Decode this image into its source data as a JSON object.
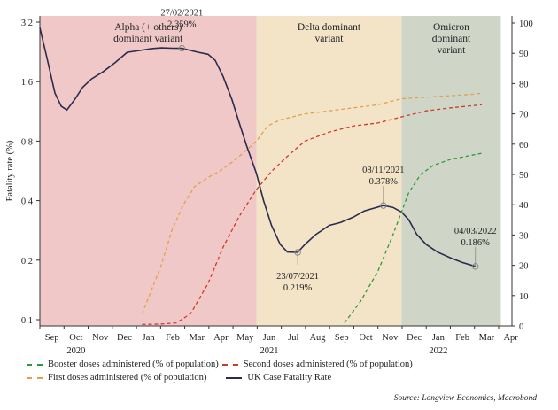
{
  "chart_data": {
    "type": "line",
    "ylabel_left": "Fatality rate (%)",
    "left_axis": {
      "scale": "log2",
      "ticks": [
        "0.1",
        "0.2",
        "0.4",
        "0.8",
        "1.6",
        "3.2"
      ],
      "ylim": [
        0.1,
        3.2
      ]
    },
    "right_axis": {
      "ticks": [
        "0",
        "10",
        "20",
        "30",
        "40",
        "50",
        "60",
        "70",
        "80",
        "90",
        "100"
      ],
      "ylim": [
        0,
        100
      ]
    },
    "x_ticks": [
      "Sep",
      "Oct",
      "Nov",
      "Dec",
      "Jan",
      "Feb",
      "Mar",
      "Apr",
      "May",
      "Jun",
      "Jul",
      "Aug",
      "Sep",
      "Oct",
      "Nov",
      "Dec",
      "Jan",
      "Feb",
      "Mar",
      "Apr"
    ],
    "year_labels": [
      "2020",
      "2021",
      "2022"
    ],
    "regions": [
      {
        "label": [
          "Alpha (+ others)",
          "dominant variant"
        ],
        "from": "2020-09-01",
        "to": "2021-06-01",
        "color": "#f0c8c8"
      },
      {
        "label": [
          "Delta dominant",
          "variant"
        ],
        "from": "2021-06-01",
        "to": "2021-12-01",
        "color": "#f3e4c8"
      },
      {
        "label": [
          "Omicron",
          "dominant",
          "variant"
        ],
        "from": "2021-12-01",
        "to": "2022-04-05",
        "color": "#cfd6c8"
      }
    ],
    "series": [
      {
        "name": "UK Case Fatality Rate",
        "axis": "left",
        "style": "solid",
        "color": "#2b2b4d",
        "points": [
          [
            "2020-09-01",
            3.0
          ],
          [
            "2020-09-10",
            2.1
          ],
          [
            "2020-09-20",
            1.4
          ],
          [
            "2020-09-28",
            1.2
          ],
          [
            "2020-10-05",
            1.15
          ],
          [
            "2020-10-15",
            1.3
          ],
          [
            "2020-10-25",
            1.5
          ],
          [
            "2020-11-05",
            1.65
          ],
          [
            "2020-11-20",
            1.8
          ],
          [
            "2020-12-05",
            2.0
          ],
          [
            "2020-12-20",
            2.25
          ],
          [
            "2021-01-05",
            2.3
          ],
          [
            "2021-01-20",
            2.35
          ],
          [
            "2021-02-01",
            2.37
          ],
          [
            "2021-02-15",
            2.36
          ],
          [
            "2021-02-27",
            2.359
          ],
          [
            "2021-03-10",
            2.3
          ],
          [
            "2021-03-20",
            2.25
          ],
          [
            "2021-04-01",
            2.2
          ],
          [
            "2021-04-10",
            2.05
          ],
          [
            "2021-04-20",
            1.7
          ],
          [
            "2021-05-01",
            1.3
          ],
          [
            "2021-05-10",
            1.0
          ],
          [
            "2021-05-20",
            0.75
          ],
          [
            "2021-06-01",
            0.55
          ],
          [
            "2021-06-10",
            0.4
          ],
          [
            "2021-06-20",
            0.3
          ],
          [
            "2021-07-01",
            0.24
          ],
          [
            "2021-07-10",
            0.22
          ],
          [
            "2021-07-23",
            0.219
          ],
          [
            "2021-08-01",
            0.24
          ],
          [
            "2021-08-15",
            0.27
          ],
          [
            "2021-09-01",
            0.3
          ],
          [
            "2021-09-15",
            0.31
          ],
          [
            "2021-10-01",
            0.33
          ],
          [
            "2021-10-15",
            0.355
          ],
          [
            "2021-11-08",
            0.378
          ],
          [
            "2021-11-20",
            0.37
          ],
          [
            "2021-12-01",
            0.35
          ],
          [
            "2021-12-10",
            0.32
          ],
          [
            "2021-12-20",
            0.27
          ],
          [
            "2022-01-01",
            0.24
          ],
          [
            "2022-01-15",
            0.22
          ],
          [
            "2022-02-01",
            0.205
          ],
          [
            "2022-02-15",
            0.195
          ],
          [
            "2022-03-04",
            0.186
          ]
        ]
      },
      {
        "name": "First doses administered (% of population)",
        "axis": "right",
        "style": "dashed",
        "color": "#e0a050",
        "points": [
          [
            "2021-01-08",
            4
          ],
          [
            "2021-01-20",
            12
          ],
          [
            "2021-02-01",
            20
          ],
          [
            "2021-02-15",
            32
          ],
          [
            "2021-03-01",
            40
          ],
          [
            "2021-03-15",
            46
          ],
          [
            "2021-04-01",
            49
          ],
          [
            "2021-04-15",
            51
          ],
          [
            "2021-05-01",
            54
          ],
          [
            "2021-05-15",
            57
          ],
          [
            "2021-06-01",
            61
          ],
          [
            "2021-06-15",
            66
          ],
          [
            "2021-07-01",
            68
          ],
          [
            "2021-08-01",
            70
          ],
          [
            "2021-09-01",
            71
          ],
          [
            "2021-10-01",
            72
          ],
          [
            "2021-11-01",
            73
          ],
          [
            "2021-12-01",
            75
          ],
          [
            "2022-01-01",
            75.5
          ],
          [
            "2022-02-01",
            76
          ],
          [
            "2022-03-01",
            76.5
          ],
          [
            "2022-03-12",
            76.8
          ]
        ]
      },
      {
        "name": "Second doses administered (% of population)",
        "axis": "right",
        "style": "dashed",
        "color": "#d03a2a",
        "points": [
          [
            "2021-01-08",
            0.5
          ],
          [
            "2021-02-01",
            0.6
          ],
          [
            "2021-02-20",
            1
          ],
          [
            "2021-03-10",
            4
          ],
          [
            "2021-04-01",
            14
          ],
          [
            "2021-04-20",
            26
          ],
          [
            "2021-05-10",
            36
          ],
          [
            "2021-06-01",
            45
          ],
          [
            "2021-06-20",
            51
          ],
          [
            "2021-07-10",
            56
          ],
          [
            "2021-08-01",
            61
          ],
          [
            "2021-09-01",
            64
          ],
          [
            "2021-10-01",
            66
          ],
          [
            "2021-11-01",
            67
          ],
          [
            "2021-12-01",
            69
          ],
          [
            "2022-01-01",
            71
          ],
          [
            "2022-02-01",
            72
          ],
          [
            "2022-03-12",
            73
          ]
        ]
      },
      {
        "name": "Booster doses administered (% of population)",
        "axis": "right",
        "style": "dashed",
        "color": "#2f9a3a",
        "points": [
          [
            "2021-09-20",
            1
          ],
          [
            "2021-10-10",
            8
          ],
          [
            "2021-11-01",
            18
          ],
          [
            "2021-11-20",
            30
          ],
          [
            "2021-12-10",
            44
          ],
          [
            "2021-12-25",
            50
          ],
          [
            "2022-01-10",
            53
          ],
          [
            "2022-02-01",
            55
          ],
          [
            "2022-03-12",
            57
          ]
        ]
      }
    ],
    "annotations": [
      {
        "date": "27/02/2021",
        "value": "2.359%",
        "x": "2021-02-27",
        "y": 2.359
      },
      {
        "date": "23/07/2021",
        "value": "0.219%",
        "x": "2021-07-23",
        "y": 0.219
      },
      {
        "date": "08/11/2021",
        "value": "0.378%",
        "x": "2021-11-08",
        "y": 0.378
      },
      {
        "date": "04/03/2022",
        "value": "0.186%",
        "x": "2022-03-04",
        "y": 0.186
      }
    ],
    "legend_placement": "bottom",
    "source": "Source: Longview Economics, Macrobond"
  }
}
